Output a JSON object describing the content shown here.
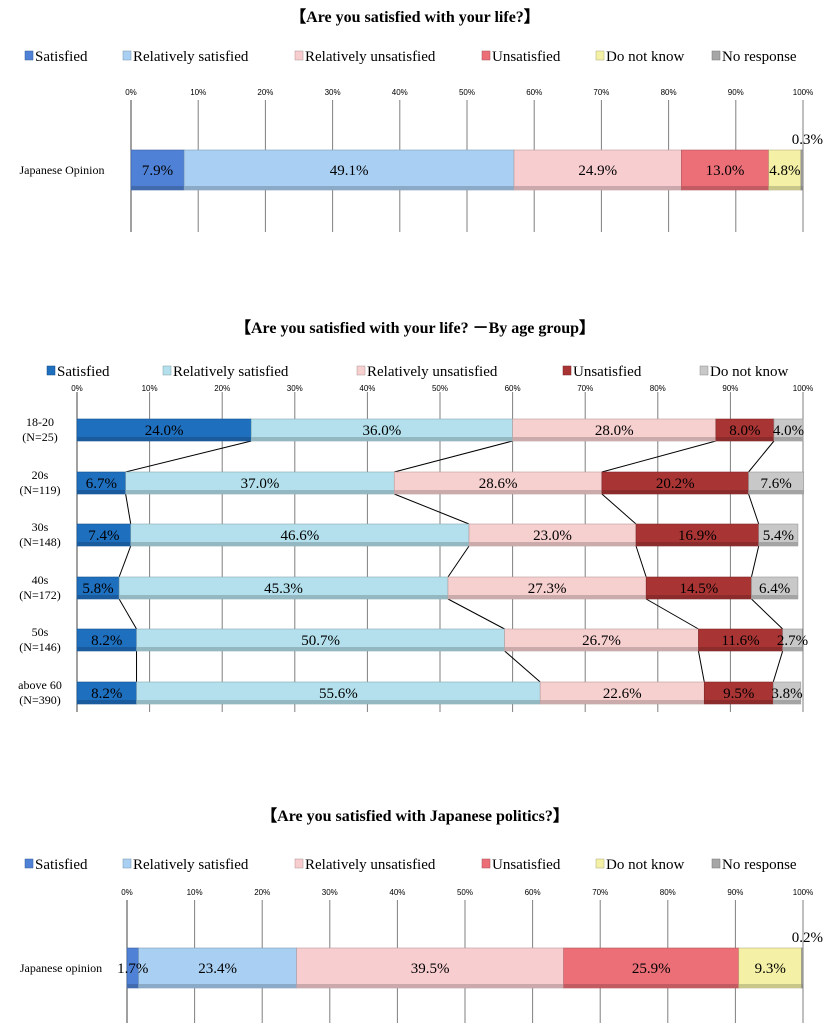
{
  "chart_data": [
    {
      "type": "bar",
      "orientation": "horizontal",
      "stacked": true,
      "percent_stacked": true,
      "title": "【Are you satisfied with your life?】",
      "categories": [
        "Japanese Opinion"
      ],
      "tick_labels": [
        "0%",
        "10%",
        "20%",
        "30%",
        "40%",
        "50%",
        "60%",
        "70%",
        "80%",
        "90%",
        "100%"
      ],
      "xlim": [
        0,
        100
      ],
      "legend": "top",
      "series": [
        {
          "name": "Satisfied",
          "color": "#4f81d6",
          "values": [
            7.9
          ],
          "labels": [
            "7.9%"
          ]
        },
        {
          "name": "Relatively satisfied",
          "color": "#a9cff3",
          "values": [
            49.1
          ],
          "labels": [
            "49.1%"
          ]
        },
        {
          "name": "Relatively unsatisfied",
          "color": "#f8cdd0",
          "values": [
            24.9
          ],
          "labels": [
            "24.9%"
          ]
        },
        {
          "name": "Unsatisfied",
          "color": "#ec6f78",
          "values": [
            13.0
          ],
          "labels": [
            "13.0%"
          ]
        },
        {
          "name": "Do not know",
          "color": "#f4f1a6",
          "values": [
            4.8
          ],
          "labels": [
            "4.8%"
          ]
        },
        {
          "name": "No response",
          "color": "#a6a6a6",
          "values": [
            0.3
          ],
          "labels": [
            "0.3%"
          ]
        }
      ]
    },
    {
      "type": "bar",
      "orientation": "horizontal",
      "stacked": true,
      "percent_stacked": true,
      "title": "【Are you satisfied with your life? －By age group】",
      "categories": [
        [
          "18-20",
          "(N=25)"
        ],
        [
          "20s",
          "(N=119)"
        ],
        [
          "30s",
          "(N=148)"
        ],
        [
          "40s",
          "(N=172)"
        ],
        [
          "50s",
          "(N=146)"
        ],
        [
          "above 60",
          "(N=390)"
        ]
      ],
      "tick_labels": [
        "0%",
        "10%",
        "20%",
        "30%",
        "40%",
        "50%",
        "60%",
        "70%",
        "80%",
        "90%",
        "100%"
      ],
      "xlim": [
        0,
        100
      ],
      "legend": "top",
      "series_lines": true,
      "series": [
        {
          "name": "Satisfied",
          "color": "#1f6fbf",
          "values": [
            24.0,
            6.7,
            7.4,
            5.8,
            8.2,
            8.2
          ],
          "labels": [
            "24.0%",
            "6.7%",
            "7.4%",
            "5.8%",
            "8.2%",
            "8.2%"
          ]
        },
        {
          "name": "Relatively satisfied",
          "color": "#b3e0ec",
          "values": [
            36.0,
            37.0,
            46.6,
            45.3,
            50.7,
            55.6
          ],
          "labels": [
            "36.0%",
            "37.0%",
            "46.6%",
            "45.3%",
            "50.7%",
            "55.6%"
          ]
        },
        {
          "name": "Relatively unsatisfied",
          "color": "#f6cfcf",
          "values": [
            28.0,
            28.6,
            23.0,
            27.3,
            26.7,
            22.6
          ],
          "labels": [
            "28.0%",
            "28.6%",
            "23.0%",
            "27.3%",
            "26.7%",
            "22.6%"
          ]
        },
        {
          "name": "Unsatisfied",
          "color": "#a93434",
          "values": [
            8.0,
            20.2,
            16.9,
            14.5,
            11.6,
            9.5
          ],
          "labels": [
            "8.0%",
            "20.2%",
            "16.9%",
            "14.5%",
            "11.6%",
            "9.5%"
          ]
        },
        {
          "name": "Do not know",
          "color": "#c8c8c8",
          "values": [
            4.0,
            7.6,
            5.4,
            6.4,
            2.7,
            3.8
          ],
          "labels": [
            "4.0%",
            "7.6%",
            "5.4%",
            "6.4%",
            "2.7%",
            "3.8%"
          ]
        }
      ]
    },
    {
      "type": "bar",
      "orientation": "horizontal",
      "stacked": true,
      "percent_stacked": true,
      "title": "【Are you satisfied with Japanese politics?】",
      "categories": [
        "Japanese opinion"
      ],
      "tick_labels": [
        "0%",
        "10%",
        "20%",
        "30%",
        "40%",
        "50%",
        "60%",
        "70%",
        "80%",
        "90%",
        "100%"
      ],
      "xlim": [
        0,
        100
      ],
      "legend": "top",
      "series": [
        {
          "name": "Satisfied",
          "color": "#4f81d6",
          "values": [
            1.7
          ],
          "labels": [
            "1.7%"
          ]
        },
        {
          "name": "Relatively satisfied",
          "color": "#a9cff3",
          "values": [
            23.4
          ],
          "labels": [
            "23.4%"
          ]
        },
        {
          "name": "Relatively unsatisfied",
          "color": "#f8cdd0",
          "values": [
            39.5
          ],
          "labels": [
            "39.5%"
          ]
        },
        {
          "name": "Unsatisfied",
          "color": "#ec6f78",
          "values": [
            25.9
          ],
          "labels": [
            "25.9%"
          ]
        },
        {
          "name": "Do not know",
          "color": "#f4f1a6",
          "values": [
            9.3
          ],
          "labels": [
            "9.3%"
          ]
        },
        {
          "name": "No response",
          "color": "#a6a6a6",
          "values": [
            0.2
          ],
          "labels": [
            "0.2%"
          ]
        }
      ]
    }
  ]
}
